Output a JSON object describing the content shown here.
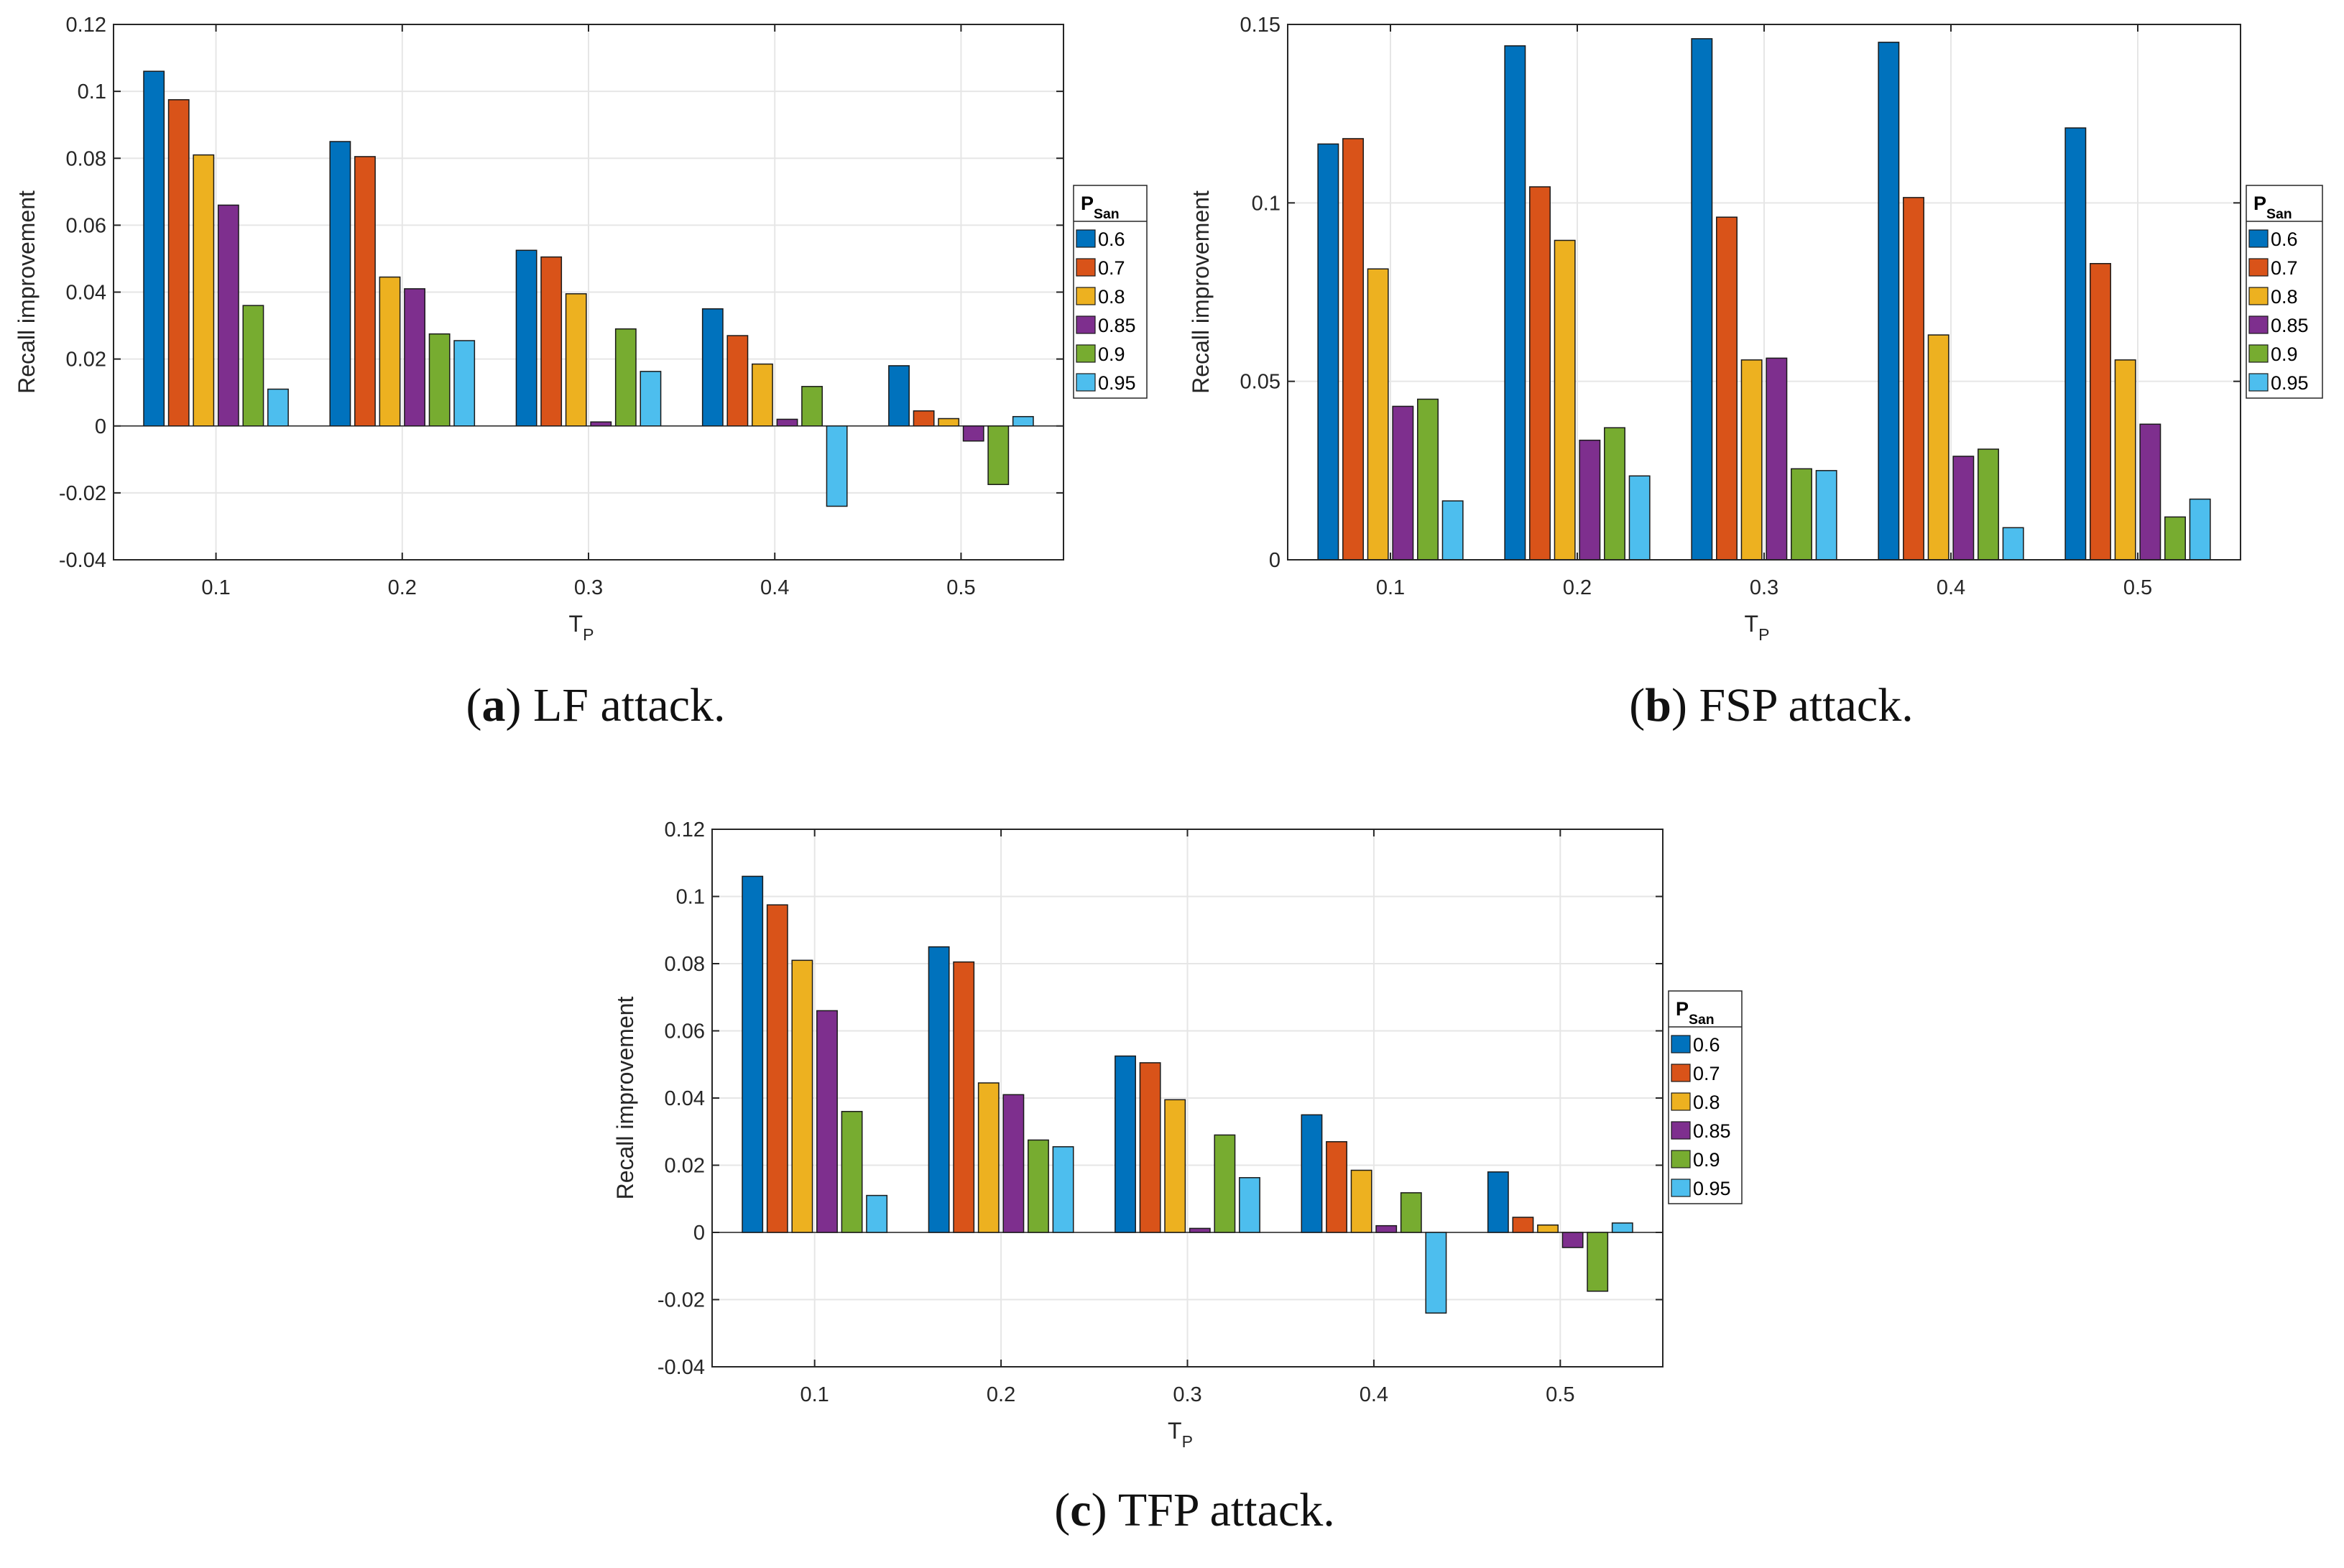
{
  "series_colors": [
    "#0072BD",
    "#D95319",
    "#EDB120",
    "#7E2F8E",
    "#77AC30",
    "#4DBEEE"
  ],
  "legend_title_main": "P",
  "legend_title_sub": "San",
  "chart_data": [
    {
      "type": "bar",
      "caption_letter": "a",
      "caption_text": "LF attack.",
      "xlabel_main": "T",
      "xlabel_sub": "P",
      "ylabel": "Recall improvement",
      "ylim": [
        -0.04,
        0.12
      ],
      "yticks": [
        "-0.04",
        "-0.02",
        "0",
        "0.02",
        "0.04",
        "0.06",
        "0.08",
        "0.1",
        "0.12"
      ],
      "categories": [
        "0.1",
        "0.2",
        "0.3",
        "0.4",
        "0.5"
      ],
      "grid": true,
      "legend_position": "right",
      "series": [
        {
          "name": "0.6",
          "values": [
            0.106,
            0.085,
            0.0525,
            0.035,
            0.018
          ]
        },
        {
          "name": "0.7",
          "values": [
            0.0975,
            0.0805,
            0.0505,
            0.027,
            0.0045
          ]
        },
        {
          "name": "0.8",
          "values": [
            0.081,
            0.0445,
            0.0395,
            0.0185,
            0.0022
          ]
        },
        {
          "name": "0.85",
          "values": [
            0.066,
            0.041,
            0.0012,
            0.002,
            -0.0045
          ]
        },
        {
          "name": "0.9",
          "values": [
            0.036,
            0.0275,
            0.029,
            0.0118,
            -0.0175
          ]
        },
        {
          "name": "0.95",
          "values": [
            0.011,
            0.0255,
            0.0163,
            -0.024,
            0.0028
          ]
        }
      ]
    },
    {
      "type": "bar",
      "caption_letter": "b",
      "caption_text": "FSP attack.",
      "xlabel_main": "T",
      "xlabel_sub": "P",
      "ylabel": "Recall improvement",
      "ylim": [
        0,
        0.15
      ],
      "yticks": [
        "0",
        "0.05",
        "0.1",
        "0.15"
      ],
      "categories": [
        "0.1",
        "0.2",
        "0.3",
        "0.4",
        "0.5"
      ],
      "grid": true,
      "legend_position": "right",
      "series": [
        {
          "name": "0.6",
          "values": [
            0.1165,
            0.144,
            0.146,
            0.145,
            0.121
          ]
        },
        {
          "name": "0.7",
          "values": [
            0.118,
            0.1045,
            0.096,
            0.1015,
            0.083
          ]
        },
        {
          "name": "0.8",
          "values": [
            0.0815,
            0.0895,
            0.056,
            0.063,
            0.056
          ]
        },
        {
          "name": "0.85",
          "values": [
            0.043,
            0.0335,
            0.0565,
            0.029,
            0.038
          ]
        },
        {
          "name": "0.9",
          "values": [
            0.045,
            0.037,
            0.0255,
            0.031,
            0.012
          ]
        },
        {
          "name": "0.95",
          "values": [
            0.0165,
            0.0235,
            0.025,
            0.009,
            0.017
          ]
        }
      ]
    },
    {
      "type": "bar",
      "caption_letter": "c",
      "caption_text": "TFP attack.",
      "xlabel_main": "T",
      "xlabel_sub": "P",
      "ylabel": "Recall improvement",
      "ylim": [
        -0.04,
        0.12
      ],
      "yticks": [
        "-0.04",
        "-0.02",
        "0",
        "0.02",
        "0.04",
        "0.06",
        "0.08",
        "0.1",
        "0.12"
      ],
      "categories": [
        "0.1",
        "0.2",
        "0.3",
        "0.4",
        "0.5"
      ],
      "grid": true,
      "legend_position": "right",
      "series": [
        {
          "name": "0.6",
          "values": [
            0.106,
            0.085,
            0.0525,
            0.035,
            0.018
          ]
        },
        {
          "name": "0.7",
          "values": [
            0.0975,
            0.0805,
            0.0505,
            0.027,
            0.0045
          ]
        },
        {
          "name": "0.8",
          "values": [
            0.081,
            0.0445,
            0.0395,
            0.0185,
            0.0022
          ]
        },
        {
          "name": "0.85",
          "values": [
            0.066,
            0.041,
            0.0012,
            0.002,
            -0.0045
          ]
        },
        {
          "name": "0.9",
          "values": [
            0.036,
            0.0275,
            0.029,
            0.0118,
            -0.0175
          ]
        },
        {
          "name": "0.95",
          "values": [
            0.011,
            0.0255,
            0.0163,
            -0.024,
            0.0028
          ]
        }
      ]
    }
  ]
}
